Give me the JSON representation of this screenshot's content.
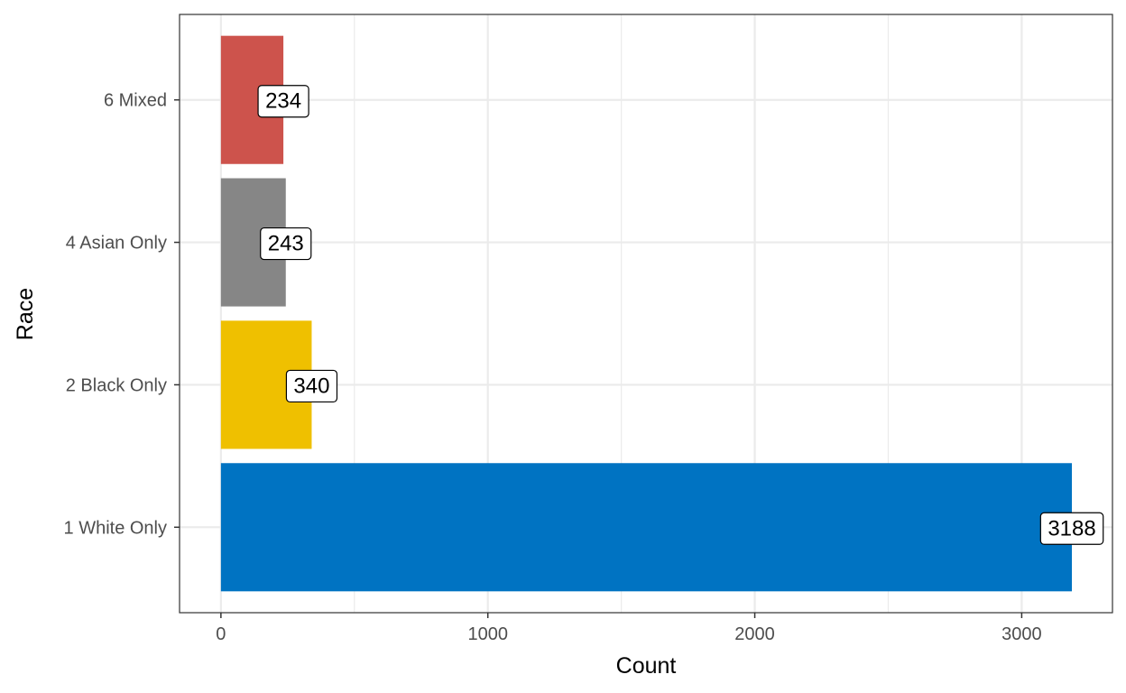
{
  "chart_data": {
    "type": "bar",
    "orientation": "horizontal",
    "xlabel": "Count",
    "ylabel": "Race",
    "xlim": [
      -155,
      3340
    ],
    "xticks": [
      0,
      1000,
      2000,
      3000
    ],
    "xtick_labels": [
      "0",
      "1000",
      "2000",
      "3000"
    ],
    "grid": true,
    "legend": "none",
    "categories": [
      "1 White Only",
      "2 Black Only",
      "4 Asian Only",
      "6 Mixed"
    ],
    "values": [
      3188,
      340,
      243,
      234
    ],
    "data_labels": [
      "3188",
      "340",
      "243",
      "234"
    ],
    "colors": [
      "#0073C2",
      "#EFC000",
      "#868686",
      "#CD534C"
    ]
  }
}
